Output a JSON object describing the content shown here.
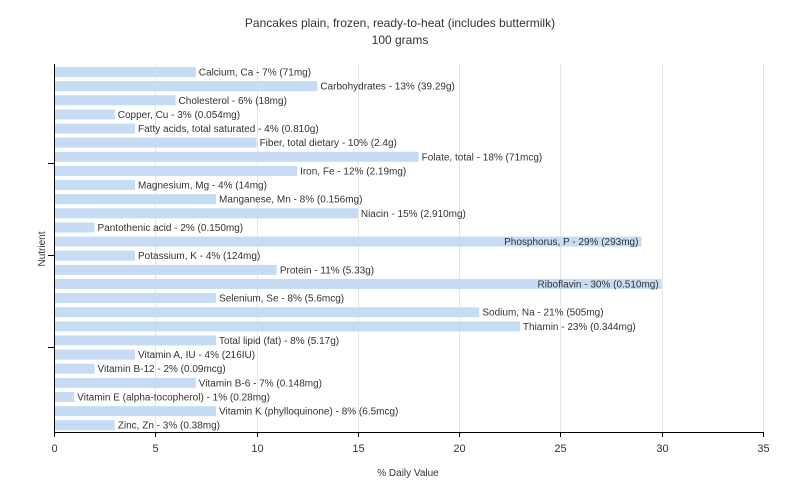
{
  "chart_data": {
    "type": "bar",
    "orientation": "horizontal",
    "title": "Pancakes plain, frozen, ready-to-heat (includes buttermilk)",
    "subtitle": "100 grams",
    "xlabel": "% Daily Value",
    "ylabel": "Nutrient",
    "xlim": [
      0,
      35
    ],
    "xticks": [
      "0",
      "5",
      "10",
      "15",
      "20",
      "25",
      "30",
      "35"
    ],
    "grid": "vertical",
    "bar_color": "#c6dcf5",
    "categories": [
      "Calcium, Ca",
      "Carbohydrates",
      "Cholesterol",
      "Copper, Cu",
      "Fatty acids, total saturated",
      "Fiber, total dietary",
      "Folate, total",
      "Iron, Fe",
      "Magnesium, Mg",
      "Manganese, Mn",
      "Niacin",
      "Pantothenic acid",
      "Phosphorus, P",
      "Potassium, K",
      "Protein",
      "Riboflavin",
      "Selenium, Se",
      "Sodium, Na",
      "Thiamin",
      "Total lipid (fat)",
      "Vitamin A, IU",
      "Vitamin B-12",
      "Vitamin B-6",
      "Vitamin E (alpha-tocopherol)",
      "Vitamin K (phylloquinone)",
      "Zinc, Zn"
    ],
    "values": [
      7,
      13,
      6,
      3,
      4,
      10,
      18,
      12,
      4,
      8,
      15,
      2,
      29,
      4,
      11,
      30,
      8,
      21,
      23,
      8,
      4,
      2,
      7,
      1,
      8,
      3
    ],
    "labels": [
      "Calcium, Ca - 7% (71mg)",
      "Carbohydrates - 13% (39.29g)",
      "Cholesterol - 6% (18mg)",
      "Copper, Cu - 3% (0.054mg)",
      "Fatty acids, total saturated - 4% (0.810g)",
      "Fiber, total dietary - 10% (2.4g)",
      "Folate, total - 18% (71mcg)",
      "Iron, Fe - 12% (2.19mg)",
      "Magnesium, Mg - 4% (14mg)",
      "Manganese, Mn - 8% (0.156mg)",
      "Niacin - 15% (2.910mg)",
      "Pantothenic acid - 2% (0.150mg)",
      "Phosphorus, P - 29% (293mg)",
      "Potassium, K - 4% (124mg)",
      "Protein - 11% (5.33g)",
      "Riboflavin - 30% (0.510mg)",
      "Selenium, Se - 8% (5.6mcg)",
      "Sodium, Na - 21% (505mg)",
      "Thiamin - 23% (0.344mg)",
      "Total lipid (fat) - 8% (5.17g)",
      "Vitamin A, IU - 4% (216IU)",
      "Vitamin B-12 - 2% (0.09mcg)",
      "Vitamin B-6 - 7% (0.148mg)",
      "Vitamin E (alpha-tocopherol) - 1% (0.28mg)",
      "Vitamin K (phylloquinone) - 8% (6.5mcg)",
      "Zinc, Zn - 3% (0.38mg)"
    ]
  }
}
